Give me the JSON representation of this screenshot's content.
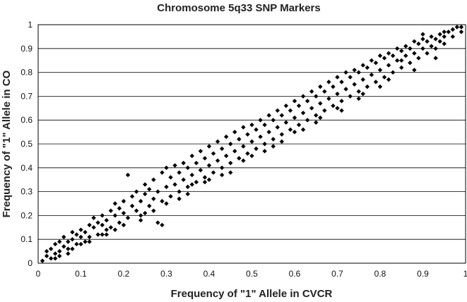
{
  "chart_data": {
    "type": "scatter",
    "title": "Chromosome 5q33 SNP Markers",
    "xlabel": "Frequency of \"1\" Allele in CVCR",
    "ylabel": "Frequency of \"1\" Allele in CO",
    "xlim": [
      0,
      1
    ],
    "ylim": [
      0,
      1
    ],
    "xticks": [
      "0",
      "0.1",
      "0.2",
      "0.3",
      "0.4",
      "0.5",
      "0.6",
      "0.7",
      "0.8",
      "0.9",
      "1"
    ],
    "yticks": [
      "0",
      "0.1",
      "0.2",
      "0.3",
      "0.4",
      "0.5",
      "0.6",
      "0.7",
      "0.8",
      "0.9",
      "1"
    ],
    "grid": "horizontal",
    "marker": "diamond",
    "marker_color": "#000000",
    "series": [
      {
        "points": [
          [
            0.01,
            0.01
          ],
          [
            0.02,
            0.03
          ],
          [
            0.02,
            0.05
          ],
          [
            0.03,
            0.02
          ],
          [
            0.03,
            0.06
          ],
          [
            0.04,
            0.04
          ],
          [
            0.04,
            0.08
          ],
          [
            0.05,
            0.05
          ],
          [
            0.05,
            0.09
          ],
          [
            0.06,
            0.07
          ],
          [
            0.06,
            0.11
          ],
          [
            0.07,
            0.06
          ],
          [
            0.07,
            0.09
          ],
          [
            0.08,
            0.1
          ],
          [
            0.08,
            0.13
          ],
          [
            0.09,
            0.08
          ],
          [
            0.09,
            0.12
          ],
          [
            0.1,
            0.11
          ],
          [
            0.1,
            0.14
          ],
          [
            0.11,
            0.09
          ],
          [
            0.11,
            0.13
          ],
          [
            0.12,
            0.16
          ],
          [
            0.12,
            0.11
          ],
          [
            0.13,
            0.15
          ],
          [
            0.13,
            0.19
          ],
          [
            0.14,
            0.12
          ],
          [
            0.14,
            0.17
          ],
          [
            0.15,
            0.16
          ],
          [
            0.15,
            0.2
          ],
          [
            0.16,
            0.14
          ],
          [
            0.16,
            0.18
          ],
          [
            0.17,
            0.22
          ],
          [
            0.17,
            0.15
          ],
          [
            0.18,
            0.2
          ],
          [
            0.18,
            0.25
          ],
          [
            0.19,
            0.17
          ],
          [
            0.19,
            0.23
          ],
          [
            0.2,
            0.21
          ],
          [
            0.2,
            0.26
          ],
          [
            0.21,
            0.37
          ],
          [
            0.21,
            0.19
          ],
          [
            0.22,
            0.24
          ],
          [
            0.22,
            0.28
          ],
          [
            0.23,
            0.22
          ],
          [
            0.23,
            0.3
          ],
          [
            0.24,
            0.26
          ],
          [
            0.24,
            0.2
          ],
          [
            0.25,
            0.29
          ],
          [
            0.25,
            0.33
          ],
          [
            0.26,
            0.24
          ],
          [
            0.26,
            0.31
          ],
          [
            0.27,
            0.27
          ],
          [
            0.27,
            0.35
          ],
          [
            0.28,
            0.17
          ],
          [
            0.28,
            0.3
          ],
          [
            0.29,
            0.38
          ],
          [
            0.29,
            0.26
          ],
          [
            0.3,
            0.32
          ],
          [
            0.3,
            0.4
          ],
          [
            0.31,
            0.28
          ],
          [
            0.31,
            0.36
          ],
          [
            0.32,
            0.33
          ],
          [
            0.32,
            0.41
          ],
          [
            0.33,
            0.3
          ],
          [
            0.33,
            0.38
          ],
          [
            0.34,
            0.35
          ],
          [
            0.34,
            0.42
          ],
          [
            0.35,
            0.32
          ],
          [
            0.35,
            0.4
          ],
          [
            0.36,
            0.37
          ],
          [
            0.36,
            0.45
          ],
          [
            0.37,
            0.34
          ],
          [
            0.37,
            0.42
          ],
          [
            0.38,
            0.39
          ],
          [
            0.38,
            0.47
          ],
          [
            0.39,
            0.36
          ],
          [
            0.39,
            0.44
          ],
          [
            0.4,
            0.41
          ],
          [
            0.4,
            0.49
          ],
          [
            0.41,
            0.38
          ],
          [
            0.41,
            0.46
          ],
          [
            0.42,
            0.43
          ],
          [
            0.42,
            0.51
          ],
          [
            0.43,
            0.4
          ],
          [
            0.43,
            0.48
          ],
          [
            0.44,
            0.45
          ],
          [
            0.44,
            0.53
          ],
          [
            0.45,
            0.42
          ],
          [
            0.45,
            0.5
          ],
          [
            0.46,
            0.47
          ],
          [
            0.46,
            0.55
          ],
          [
            0.47,
            0.44
          ],
          [
            0.47,
            0.52
          ],
          [
            0.48,
            0.49
          ],
          [
            0.48,
            0.57
          ],
          [
            0.49,
            0.46
          ],
          [
            0.49,
            0.54
          ],
          [
            0.5,
            0.51
          ],
          [
            0.5,
            0.58
          ],
          [
            0.51,
            0.48
          ],
          [
            0.51,
            0.56
          ],
          [
            0.52,
            0.53
          ],
          [
            0.52,
            0.6
          ],
          [
            0.53,
            0.5
          ],
          [
            0.53,
            0.58
          ],
          [
            0.54,
            0.55
          ],
          [
            0.54,
            0.62
          ],
          [
            0.55,
            0.52
          ],
          [
            0.55,
            0.6
          ],
          [
            0.56,
            0.57
          ],
          [
            0.56,
            0.64
          ],
          [
            0.57,
            0.54
          ],
          [
            0.57,
            0.62
          ],
          [
            0.58,
            0.59
          ],
          [
            0.58,
            0.66
          ],
          [
            0.59,
            0.56
          ],
          [
            0.59,
            0.64
          ],
          [
            0.6,
            0.61
          ],
          [
            0.6,
            0.68
          ],
          [
            0.61,
            0.58
          ],
          [
            0.61,
            0.66
          ],
          [
            0.62,
            0.63
          ],
          [
            0.62,
            0.7
          ],
          [
            0.63,
            0.6
          ],
          [
            0.63,
            0.68
          ],
          [
            0.64,
            0.65
          ],
          [
            0.64,
            0.72
          ],
          [
            0.65,
            0.62
          ],
          [
            0.65,
            0.7
          ],
          [
            0.66,
            0.67
          ],
          [
            0.66,
            0.74
          ],
          [
            0.67,
            0.64
          ],
          [
            0.67,
            0.72
          ],
          [
            0.68,
            0.69
          ],
          [
            0.68,
            0.76
          ],
          [
            0.69,
            0.66
          ],
          [
            0.69,
            0.74
          ],
          [
            0.7,
            0.71
          ],
          [
            0.7,
            0.78
          ],
          [
            0.71,
            0.68
          ],
          [
            0.71,
            0.76
          ],
          [
            0.72,
            0.73
          ],
          [
            0.72,
            0.8
          ],
          [
            0.73,
            0.7
          ],
          [
            0.73,
            0.78
          ],
          [
            0.74,
            0.75
          ],
          [
            0.74,
            0.81
          ],
          [
            0.75,
            0.72
          ],
          [
            0.75,
            0.8
          ],
          [
            0.76,
            0.77
          ],
          [
            0.76,
            0.83
          ],
          [
            0.77,
            0.74
          ],
          [
            0.77,
            0.82
          ],
          [
            0.78,
            0.79
          ],
          [
            0.78,
            0.85
          ],
          [
            0.79,
            0.76
          ],
          [
            0.79,
            0.84
          ],
          [
            0.8,
            0.81
          ],
          [
            0.8,
            0.87
          ],
          [
            0.81,
            0.78
          ],
          [
            0.81,
            0.86
          ],
          [
            0.82,
            0.83
          ],
          [
            0.82,
            0.88
          ],
          [
            0.83,
            0.8
          ],
          [
            0.83,
            0.87
          ],
          [
            0.84,
            0.85
          ],
          [
            0.84,
            0.9
          ],
          [
            0.85,
            0.82
          ],
          [
            0.85,
            0.89
          ],
          [
            0.86,
            0.87
          ],
          [
            0.86,
            0.91
          ],
          [
            0.87,
            0.84
          ],
          [
            0.87,
            0.9
          ],
          [
            0.88,
            0.88
          ],
          [
            0.88,
            0.93
          ],
          [
            0.89,
            0.86
          ],
          [
            0.89,
            0.92
          ],
          [
            0.9,
            0.9
          ],
          [
            0.9,
            0.94
          ],
          [
            0.91,
            0.88
          ],
          [
            0.91,
            0.93
          ],
          [
            0.92,
            0.91
          ],
          [
            0.92,
            0.95
          ],
          [
            0.93,
            0.9
          ],
          [
            0.93,
            0.94
          ],
          [
            0.94,
            0.93
          ],
          [
            0.94,
            0.96
          ],
          [
            0.95,
            0.92
          ],
          [
            0.95,
            0.95
          ],
          [
            0.96,
            0.97
          ],
          [
            0.97,
            0.98
          ],
          [
            0.98,
            0.99
          ],
          [
            0.99,
            0.97
          ],
          [
            0.99,
            0.99
          ],
          [
            0.97,
            0.95
          ],
          [
            0.95,
            0.97
          ],
          [
            0.9,
            0.96
          ],
          [
            0.85,
            0.85
          ],
          [
            0.8,
            0.74
          ],
          [
            0.75,
            0.69
          ],
          [
            0.7,
            0.65
          ],
          [
            0.65,
            0.59
          ],
          [
            0.6,
            0.55
          ],
          [
            0.55,
            0.49
          ],
          [
            0.5,
            0.45
          ],
          [
            0.45,
            0.38
          ],
          [
            0.4,
            0.35
          ],
          [
            0.35,
            0.29
          ],
          [
            0.3,
            0.25
          ],
          [
            0.25,
            0.21
          ],
          [
            0.2,
            0.16
          ],
          [
            0.15,
            0.12
          ],
          [
            0.1,
            0.08
          ],
          [
            0.05,
            0.03
          ],
          [
            0.29,
            0.16
          ],
          [
            0.88,
            0.81
          ],
          [
            0.82,
            0.77
          ],
          [
            0.93,
            0.86
          ],
          [
            0.76,
            0.71
          ],
          [
            0.57,
            0.51
          ],
          [
            0.62,
            0.56
          ],
          [
            0.43,
            0.37
          ],
          [
            0.36,
            0.33
          ],
          [
            0.27,
            0.22
          ],
          [
            0.18,
            0.14
          ],
          [
            0.12,
            0.09
          ],
          [
            0.07,
            0.04
          ],
          [
            0.66,
            0.61
          ],
          [
            0.71,
            0.64
          ],
          [
            0.48,
            0.43
          ],
          [
            0.53,
            0.47
          ],
          [
            0.39,
            0.34
          ],
          [
            0.33,
            0.27
          ],
          [
            0.24,
            0.18
          ],
          [
            0.16,
            0.12
          ],
          [
            0.08,
            0.06
          ],
          [
            0.04,
            0.02
          ]
        ]
      }
    ]
  }
}
